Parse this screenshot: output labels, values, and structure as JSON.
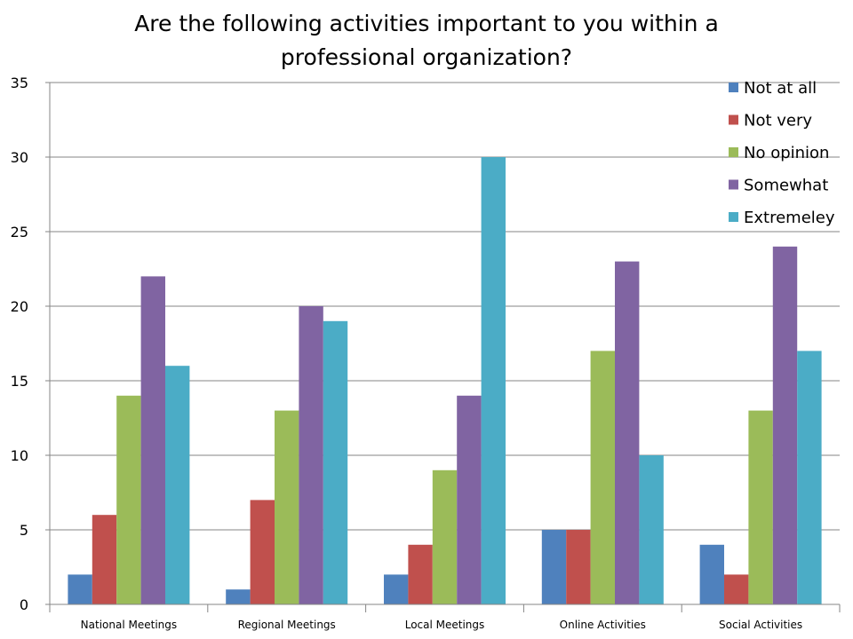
{
  "chart_data": {
    "type": "bar",
    "title_line1": "Are the following activities important to you within a",
    "title_line2": "professional organization?",
    "categories": [
      "National Meetings",
      "Regional Meetings",
      "Local Meetings",
      "Online Activities",
      "Social Activities"
    ],
    "ylim": [
      0,
      35
    ],
    "yticks": [
      0,
      5,
      10,
      15,
      20,
      25,
      30,
      35
    ],
    "grid": true,
    "legend_position": "top-right",
    "series": [
      {
        "name": "Not at all",
        "color": "#4F81BD",
        "values": [
          2,
          1,
          2,
          5,
          4
        ]
      },
      {
        "name": "Not very",
        "color": "#C0504D",
        "values": [
          6,
          7,
          4,
          5,
          2
        ]
      },
      {
        "name": "No opinion",
        "color": "#9BBB59",
        "values": [
          14,
          13,
          9,
          17,
          13
        ]
      },
      {
        "name": "Somewhat",
        "color": "#8064A2",
        "values": [
          22,
          20,
          14,
          23,
          24
        ]
      },
      {
        "name": "Extremeley",
        "color": "#4BACC6",
        "values": [
          16,
          19,
          30,
          10,
          17
        ]
      }
    ]
  }
}
